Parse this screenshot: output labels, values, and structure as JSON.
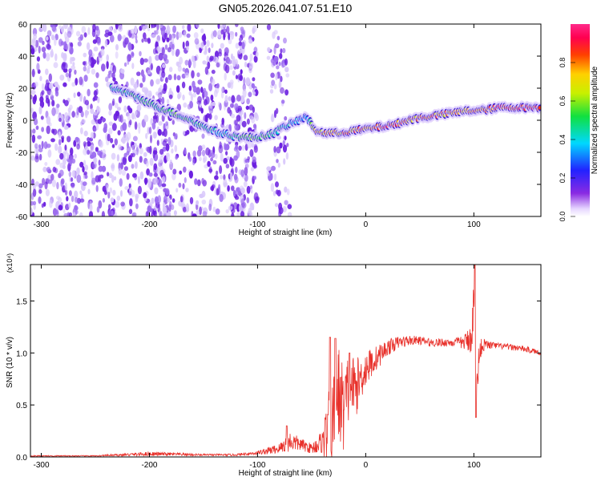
{
  "title": "GN05.2026.041.07.51.E10",
  "colors": {
    "snr_line": "#e8302a",
    "axis": "#000000",
    "background": "#ffffff",
    "noise": "#7c3aed"
  },
  "chart_data": [
    {
      "type": "heatmap",
      "name": "spectrogram",
      "xlabel": "Height of straight line (km)",
      "ylabel": "Frequency (Hz)",
      "xlim": [
        -310,
        162
      ],
      "ylim": [
        -60,
        60
      ],
      "xticks": [
        -300,
        -200,
        -100,
        0,
        100
      ],
      "xtick_labels": [
        "-300",
        "-200",
        "-100",
        "0",
        "100"
      ],
      "yticks": [
        -60,
        -40,
        -20,
        0,
        20,
        40,
        60
      ],
      "ytick_labels": [
        "-60",
        "-40",
        "-20",
        "0",
        "20",
        "40",
        "60"
      ],
      "colorbar": {
        "label": "Normalized spectral amplitude",
        "range": [
          0,
          1
        ],
        "ticks": [
          0.0,
          0.2,
          0.4,
          0.6,
          0.8
        ],
        "tick_labels": [
          "0.0",
          "0.2",
          "0.4",
          "0.6",
          "0.8"
        ],
        "colormap": "rainbow: violet-blue-cyan-green-yellow-red-pink"
      },
      "ridge": {
        "description": "dominant frequency track vs height",
        "x": [
          -235,
          -225,
          -210,
          -195,
          -180,
          -165,
          -150,
          -135,
          -120,
          -105,
          -95,
          -85,
          -75,
          -65,
          -55,
          -45,
          -35,
          -25,
          -15,
          -5,
          5,
          15,
          25,
          35,
          45,
          55,
          65,
          75,
          85,
          95,
          105,
          115,
          125,
          135,
          145,
          155,
          162
        ],
        "y": [
          20,
          18,
          14,
          9,
          5,
          1,
          -4,
          -8,
          -10,
          -11,
          -10,
          -8,
          -4,
          -1,
          2,
          -7,
          -8,
          -8,
          -7,
          -6,
          -5,
          -4,
          -3,
          -1,
          1,
          2,
          3,
          4,
          5,
          6,
          6,
          7,
          8,
          8,
          8,
          8,
          8
        ],
        "amplitude": [
          0.45,
          0.5,
          0.5,
          0.5,
          0.55,
          0.55,
          0.5,
          0.45,
          0.5,
          0.55,
          0.55,
          0.5,
          0.45,
          0.4,
          0.35,
          0.75,
          0.8,
          0.8,
          0.85,
          0.85,
          0.85,
          0.9,
          0.9,
          0.85,
          0.85,
          0.85,
          0.85,
          0.8,
          0.8,
          0.85,
          0.85,
          0.9,
          0.95,
          0.95,
          0.95,
          0.95,
          0.9
        ]
      },
      "noise_region": {
        "x_from": -310,
        "x_to": -70,
        "density": "high for x < -180, sparse near -100"
      }
    },
    {
      "type": "line",
      "name": "snr",
      "xlabel": "Height of straight line (km)",
      "ylabel": "SNR (10 * v/v)",
      "multiplier_label": "(x10⁴)",
      "xlim": [
        -310,
        162
      ],
      "ylim": [
        0,
        1.85
      ],
      "xticks": [
        -300,
        -200,
        -100,
        0,
        100
      ],
      "xtick_labels": [
        "-300",
        "-200",
        "-100",
        "0",
        "100"
      ],
      "yticks": [
        0.0,
        0.5,
        1.0,
        1.5
      ],
      "ytick_labels": [
        "0.0",
        "0.5",
        "1.0",
        "1.5"
      ],
      "series": [
        {
          "name": "SNR envelope",
          "x": [
            -310,
            -250,
            -200,
            -150,
            -120,
            -100,
            -80,
            -70,
            -60,
            -50,
            -40,
            -35,
            -30,
            -25,
            -20,
            -15,
            -10,
            -5,
            0,
            10,
            20,
            30,
            40,
            50,
            60,
            70,
            80,
            90,
            95,
            98,
            100,
            102,
            103,
            105,
            110,
            120,
            130,
            140,
            150,
            162
          ],
          "y": [
            0.01,
            0.01,
            0.03,
            0.02,
            0.02,
            0.04,
            0.08,
            0.15,
            0.12,
            0.08,
            0.15,
            0.25,
            0.35,
            0.6,
            0.45,
            0.7,
            0.65,
            0.75,
            0.85,
            0.95,
            1.05,
            1.1,
            1.12,
            1.12,
            1.1,
            1.1,
            1.1,
            1.1,
            1.12,
            1.2,
            1.35,
            1.05,
            0.6,
            1.05,
            1.08,
            1.07,
            1.06,
            1.05,
            1.03,
            1.0
          ],
          "jitter": [
            0.005,
            0.005,
            0.02,
            0.01,
            0.01,
            0.02,
            0.05,
            0.1,
            0.06,
            0.05,
            0.12,
            0.35,
            0.45,
            0.5,
            0.4,
            0.35,
            0.3,
            0.22,
            0.18,
            0.12,
            0.08,
            0.06,
            0.05,
            0.04,
            0.04,
            0.04,
            0.04,
            0.06,
            0.12,
            0.2,
            0.45,
            0.35,
            0.25,
            0.12,
            0.05,
            0.03,
            0.03,
            0.03,
            0.03,
            0.02
          ]
        }
      ],
      "peaks": [
        {
          "x": -73,
          "y": 0.3
        },
        {
          "x": -33,
          "y": 1.15
        },
        {
          "x": -28,
          "y": 1.14
        },
        {
          "x": -15,
          "y": 1.0
        },
        {
          "x": 101,
          "y": 1.85
        },
        {
          "x": 102,
          "y": 0.38
        }
      ]
    }
  ]
}
